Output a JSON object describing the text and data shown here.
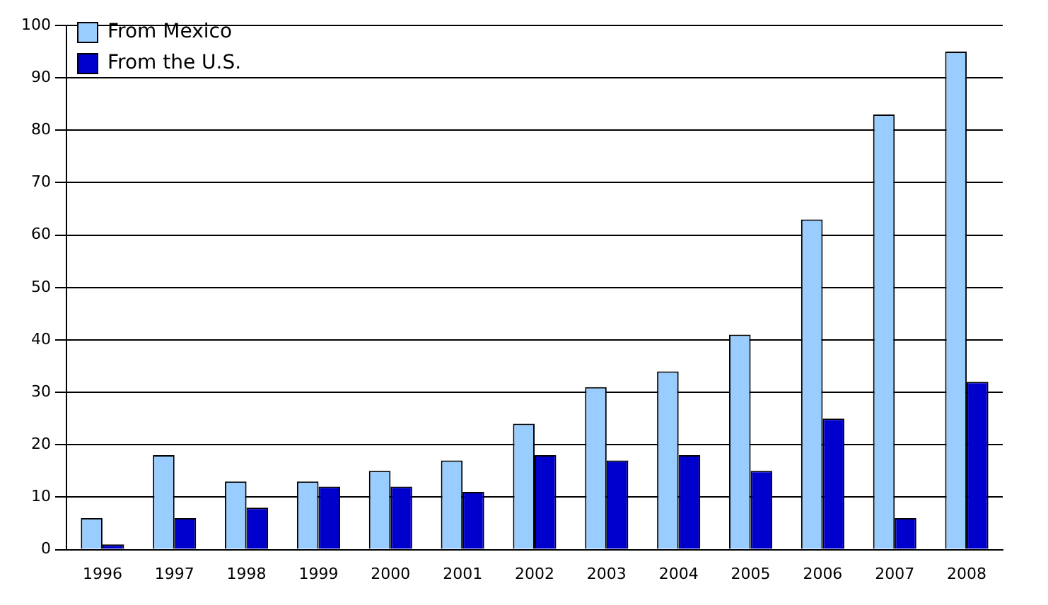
{
  "chart_data": {
    "type": "bar",
    "categories": [
      "1996",
      "1997",
      "1998",
      "1999",
      "2000",
      "2001",
      "2002",
      "2003",
      "2004",
      "2005",
      "2006",
      "2007",
      "2008"
    ],
    "series": [
      {
        "name": "From Mexico",
        "color": "#99ccff",
        "values": [
          6,
          18,
          13,
          13,
          15,
          17,
          24,
          31,
          34,
          41,
          63,
          83,
          95
        ]
      },
      {
        "name": "From the U.S.",
        "color": "#0000cc",
        "values": [
          1,
          6,
          8,
          12,
          12,
          11,
          18,
          17,
          18,
          15,
          25,
          6,
          32
        ]
      }
    ],
    "ylim": [
      0,
      100
    ],
    "yticks": [
      0,
      10,
      20,
      30,
      40,
      50,
      60,
      70,
      80,
      90,
      100
    ],
    "grid": "y",
    "legend": "top left"
  }
}
